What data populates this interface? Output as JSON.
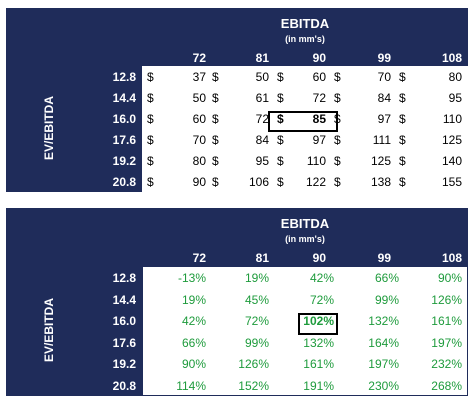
{
  "value_table": {
    "title": "EBITDA",
    "subtitle": "(in mm's)",
    "row_axis_label": "EV/EBITDA",
    "currency_symbol": "$",
    "columns": [
      "72",
      "81",
      "90",
      "99",
      "108"
    ],
    "rows": [
      {
        "multiple": "12.8",
        "values": [
          "37",
          "50",
          "60",
          "70",
          "80"
        ]
      },
      {
        "multiple": "14.4",
        "values": [
          "50",
          "61",
          "72",
          "84",
          "95"
        ]
      },
      {
        "multiple": "16.0",
        "values": [
          "60",
          "72",
          "85",
          "97",
          "110"
        ]
      },
      {
        "multiple": "17.6",
        "values": [
          "70",
          "84",
          "97",
          "111",
          "125"
        ]
      },
      {
        "multiple": "19.2",
        "values": [
          "80",
          "95",
          "110",
          "125",
          "140"
        ]
      },
      {
        "multiple": "20.8",
        "values": [
          "90",
          "106",
          "122",
          "138",
          "155"
        ]
      }
    ],
    "highlighted_cell": {
      "row": 2,
      "col": 2
    }
  },
  "return_table": {
    "title": "EBITDA",
    "subtitle": "(in mm's)",
    "row_axis_label": "EV/EBITDA",
    "columns": [
      "72",
      "81",
      "90",
      "99",
      "108"
    ],
    "rows": [
      {
        "multiple": "12.8",
        "values": [
          "-13%",
          "19%",
          "42%",
          "66%",
          "90%"
        ]
      },
      {
        "multiple": "14.4",
        "values": [
          "19%",
          "45%",
          "72%",
          "99%",
          "126%"
        ]
      },
      {
        "multiple": "16.0",
        "values": [
          "42%",
          "72%",
          "102%",
          "132%",
          "161%"
        ]
      },
      {
        "multiple": "17.6",
        "values": [
          "66%",
          "99%",
          "132%",
          "164%",
          "197%"
        ]
      },
      {
        "multiple": "19.2",
        "values": [
          "90%",
          "126%",
          "161%",
          "197%",
          "232%"
        ]
      },
      {
        "multiple": "20.8",
        "values": [
          "114%",
          "152%",
          "191%",
          "230%",
          "268%"
        ]
      }
    ],
    "highlighted_cell": {
      "row": 2,
      "col": 2
    },
    "value_color": "#1E9B3C",
    "header_color": "#1F2C5A"
  }
}
